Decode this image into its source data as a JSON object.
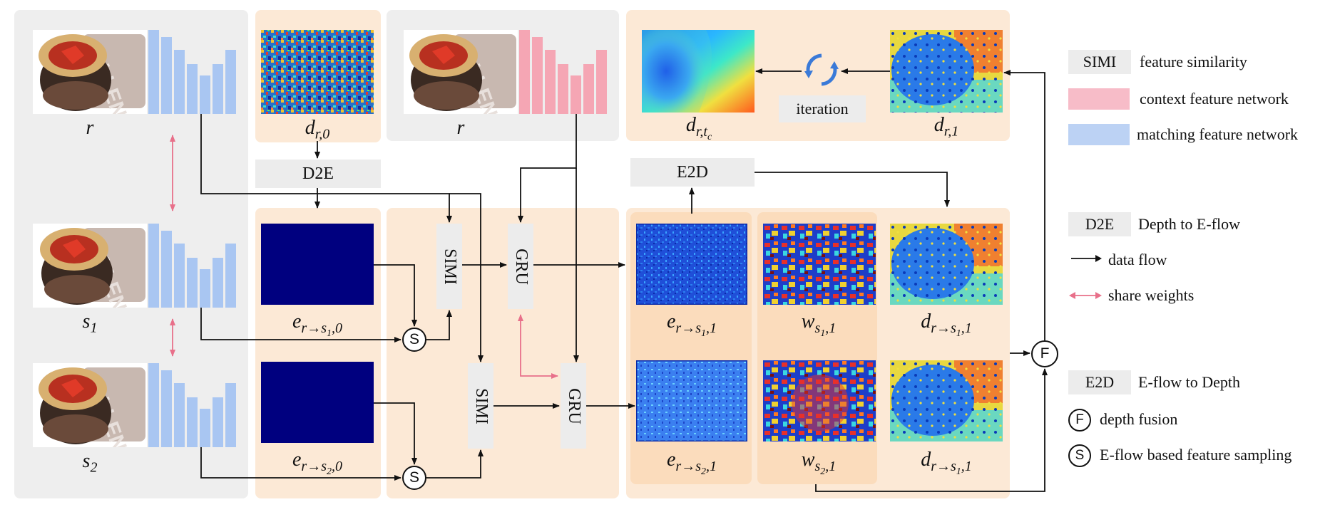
{
  "colors": {
    "gray_panel": "#eeeeee",
    "peach_panel": "#fce9d6",
    "peach_dark": "#fbdcbc",
    "matching_bar": "#a9c6f2",
    "context_bar": "#f5a6b4",
    "share_arrow": "#e8708a",
    "deep_blue": "#00007f"
  },
  "images": {
    "r": "r",
    "s1": "s_1",
    "s2": "s_2",
    "r_context": "r",
    "d_r0": "d_{r,0}",
    "d_rtc": "d_{r,t_c}",
    "d_r1": "d_{r,1}",
    "e_s1_0": "e_{r→s_1,0}",
    "e_s2_0": "e_{r→s_2,0}",
    "e_s1_1": "e_{r→s_1,1}",
    "e_s2_1": "e_{r→s_2,1}",
    "w_s1": "w_{s_1,1}",
    "w_s2": "w_{s_2,1}",
    "d_rs1_top": "d_{r→s_1,1}",
    "d_rs1_bottom": "d_{r→s_1,1}"
  },
  "labels": {
    "r": "r",
    "s": "s",
    "d": "d",
    "e": "e",
    "w": "w",
    "sub_r0": "r,0",
    "sub_r1": "r,1",
    "sub_rtc_pre": "r,t",
    "sub_c": "c",
    "sub_r_to_s": "r→s",
    "sub_1": "1",
    "sub_2": "2",
    "sub_comma0": ",0",
    "sub_comma1": ",1",
    "sub_s": "s"
  },
  "blocks": {
    "d2e": "D2E",
    "e2d": "E2D",
    "simi": "SIMI",
    "gru": "GRU",
    "iteration": "iteration",
    "sample_symbol": "S",
    "fusion_symbol": "F"
  },
  "legend": {
    "simi_key": "SIMI",
    "simi_text": "feature similarity",
    "context_text": "context feature network",
    "matching_text": "matching feature network",
    "d2e_key": "D2E",
    "d2e_text": "Depth to E-flow",
    "data_flow_text": "data flow",
    "share_weights_text": "share weights",
    "e2d_key": "E2D",
    "e2d_text": "E-flow to Depth",
    "fusion_key": "F",
    "fusion_text": "depth fusion",
    "sampling_key": "S",
    "sampling_text": "E-flow based feature sampling"
  }
}
